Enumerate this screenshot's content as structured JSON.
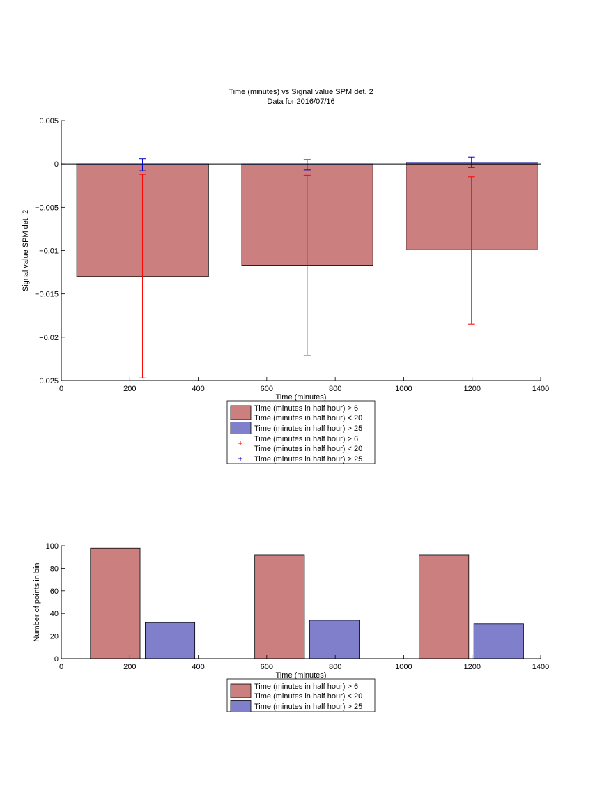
{
  "colors": {
    "red_fill": "#cc7f7f",
    "blue_fill": "#7f7fcc",
    "red_err": "#ff0000",
    "blue_err": "#0000cc",
    "axis": "#000000"
  },
  "chart_data": [
    {
      "type": "bar",
      "title": "Time (minutes) vs Signal value SPM det. 2",
      "subtitle": "Data for 2016/07/16",
      "xlabel": "Time (minutes)",
      "ylabel": "Signal value SPM det. 2",
      "xlim": [
        0,
        1400
      ],
      "ylim": [
        -0.025,
        0.005
      ],
      "xticks": [
        "0",
        "200",
        "400",
        "600",
        "800",
        "1000",
        "1200",
        "1400"
      ],
      "yticks": [
        "0.005",
        "0",
        "-0.005",
        "-0.01",
        "-0.015",
        "-0.02",
        "-0.025"
      ],
      "legend_position": "below",
      "series": [
        {
          "name": "Time (minutes in half hour) > 6\nTime (minutes in half hour) < 20",
          "color": "#cc7f7f",
          "bars": [
            {
              "x0": 45,
              "x1": 430,
              "value": -0.013
            },
            {
              "x0": 527,
              "x1": 910,
              "value": -0.0117
            },
            {
              "x0": 1007,
              "x1": 1390,
              "value": -0.0099
            }
          ]
        },
        {
          "name": "Time (minutes in half hour) > 25",
          "color": "#7f7fcc",
          "bars": [
            {
              "x0": 45,
              "x1": 430,
              "value": -0.0001
            },
            {
              "x0": 527,
              "x1": 910,
              "value": -0.0001
            },
            {
              "x0": 1007,
              "x1": 1390,
              "value": 0.0002
            }
          ]
        }
      ],
      "errorbars": [
        {
          "name": "Time (minutes in half hour) > 6\nTime (minutes in half hour) < 20",
          "color": "#ff0000",
          "points": [
            {
              "x": 237,
              "y": -0.013,
              "lo": -0.0247,
              "hi": -0.0012
            },
            {
              "x": 718,
              "y": -0.0117,
              "lo": -0.0221,
              "hi": -0.0013
            },
            {
              "x": 1198,
              "y": -0.0099,
              "lo": -0.0185,
              "hi": -0.0015
            }
          ]
        },
        {
          "name": "Time (minutes in half hour) > 25",
          "color": "#0000cc",
          "points": [
            {
              "x": 237,
              "y": -0.0001,
              "lo": -0.0008,
              "hi": 0.0006
            },
            {
              "x": 718,
              "y": -0.0001,
              "lo": -0.0007,
              "hi": 0.0005
            },
            {
              "x": 1198,
              "y": 0.0002,
              "lo": -0.0004,
              "hi": 0.0008
            }
          ]
        }
      ],
      "legend": [
        {
          "kind": "patch",
          "color": "#cc7f7f",
          "lines": [
            "Time (minutes in half hour) > 6",
            "Time (minutes in half hour) < 20"
          ]
        },
        {
          "kind": "patch",
          "color": "#7f7fcc",
          "lines": [
            "Time (minutes in half hour) > 25"
          ]
        },
        {
          "kind": "marker",
          "color": "#ff0000",
          "lines": [
            "Time (minutes in half hour) > 6",
            "Time (minutes in half hour) < 20"
          ]
        },
        {
          "kind": "marker",
          "color": "#0000cc",
          "lines": [
            "Time (minutes in half hour) > 25"
          ]
        }
      ]
    },
    {
      "type": "bar",
      "title": "",
      "xlabel": "Time (minutes)",
      "ylabel": "Number of points in bin",
      "xlim": [
        0,
        1400
      ],
      "ylim": [
        0,
        100
      ],
      "xticks": [
        "0",
        "200",
        "400",
        "600",
        "800",
        "1000",
        "1200",
        "1400"
      ],
      "yticks": [
        "100",
        "80",
        "60",
        "40",
        "20",
        "0"
      ],
      "legend_position": "below",
      "series": [
        {
          "name": "Time (minutes in half hour) > 6\nTime (minutes in half hour) < 20",
          "color": "#cc7f7f",
          "bars": [
            {
              "x0": 85,
              "x1": 230,
              "value": 98
            },
            {
              "x0": 565,
              "x1": 710,
              "value": 92
            },
            {
              "x0": 1045,
              "x1": 1190,
              "value": 92
            }
          ]
        },
        {
          "name": "Time (minutes in half hour) > 25",
          "color": "#7f7fcc",
          "bars": [
            {
              "x0": 245,
              "x1": 390,
              "value": 32
            },
            {
              "x0": 725,
              "x1": 870,
              "value": 34
            },
            {
              "x0": 1205,
              "x1": 1350,
              "value": 31
            }
          ]
        }
      ],
      "legend": [
        {
          "kind": "patch",
          "color": "#cc7f7f",
          "lines": [
            "Time (minutes in half hour) > 6",
            "Time (minutes in half hour) < 20"
          ]
        },
        {
          "kind": "patch",
          "color": "#7f7fcc",
          "lines": [
            "Time (minutes in half hour) > 25"
          ]
        }
      ]
    }
  ]
}
